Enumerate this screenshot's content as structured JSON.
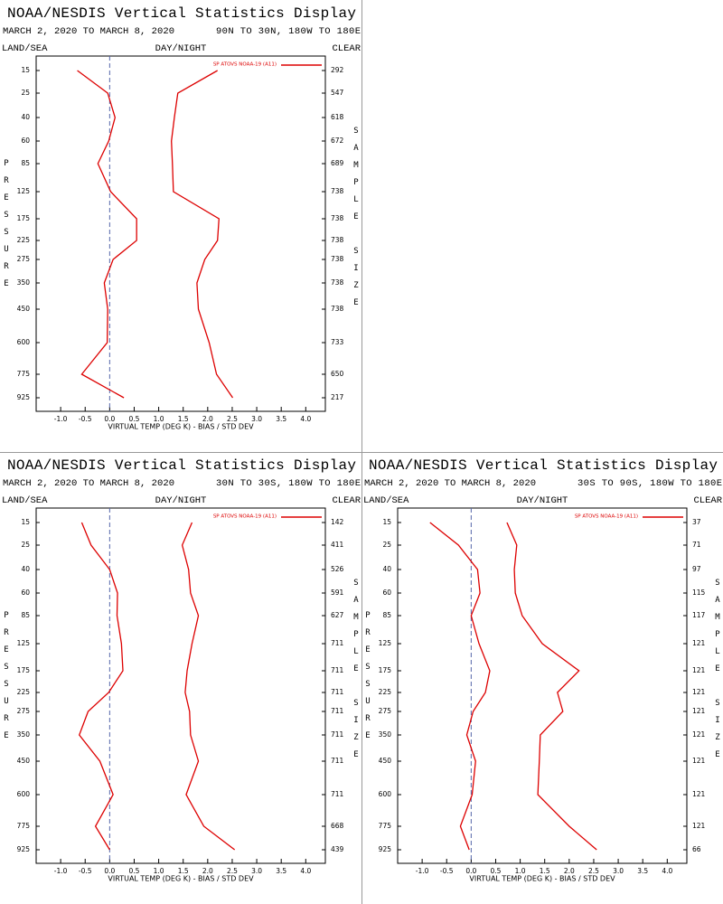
{
  "chart_data": [
    {
      "type": "line",
      "title": "NOAA/NESDIS Vertical Statistics Display",
      "subtitle": "MARCH 2, 2020 TO MARCH 8, 2020",
      "region": "90N TO 30N, 180W TO 180E",
      "annotations": [
        "LAND/SEA",
        "DAY/NIGHT",
        "CLEAR"
      ],
      "ylabel": "PRESSURE",
      "y2label": "SAMPLE SIZE",
      "xlabel": "VIRTUAL TEMP (DEG K) - BIAS / STD DEV",
      "categories": [
        15,
        25,
        40,
        60,
        85,
        125,
        175,
        225,
        275,
        350,
        450,
        600,
        775,
        925
      ],
      "sample_size": [
        292,
        547,
        618,
        672,
        689,
        738,
        738,
        738,
        738,
        738,
        738,
        733,
        650,
        217
      ],
      "series": [
        {
          "name": "SP ATOVS NOAA-19 (A11)",
          "color": "#dd0000",
          "values": [
            -0.66,
            -0.04,
            0.11,
            -0.02,
            -0.24,
            0.02,
            0.55,
            0.55,
            0.07,
            -0.11,
            -0.04,
            -0.05,
            -0.57,
            0.29
          ]
        },
        {
          "color": "#dd0000",
          "values": [
            2.2,
            1.39,
            1.32,
            1.26,
            1.28,
            1.3,
            2.23,
            2.2,
            1.94,
            1.78,
            1.81,
            2.03,
            2.18,
            2.51
          ]
        }
      ],
      "xlim": [
        -1.5,
        4.4
      ],
      "xticks": [
        {
          "value": -1,
          "label": "-1.0"
        },
        -0.5,
        {
          "value": 0,
          "label": "0.0"
        },
        0.5,
        {
          "value": 1,
          "label": "1.0"
        },
        1.5,
        {
          "value": 2,
          "label": "2.0"
        },
        2.5,
        {
          "value": 3,
          "label": "3.0"
        },
        3.5,
        {
          "value": 4,
          "label": "4.0"
        }
      ]
    },
    {
      "type": "line",
      "title": "NOAA/NESDIS Vertical Statistics Display",
      "subtitle": "MARCH 2, 2020 TO MARCH 8, 2020",
      "region": "30N TO 30S, 180W TO 180E",
      "annotations": [
        "LAND/SEA",
        "DAY/NIGHT",
        "CLEAR"
      ],
      "ylabel": "PRESSURE",
      "y2label": "SAMPLE SIZE",
      "xlabel": "VIRTUAL TEMP (DEG K) - BIAS / STD DEV",
      "categories": [
        15,
        25,
        40,
        60,
        85,
        125,
        175,
        225,
        275,
        350,
        450,
        600,
        775,
        925
      ],
      "sample_size": [
        142,
        411,
        526,
        591,
        627,
        711,
        711,
        711,
        711,
        711,
        711,
        711,
        668,
        439
      ],
      "series": [
        {
          "name": "SP ATOVS NOAA-19 (A11)",
          "color": "#dd0000",
          "values": [
            -0.57,
            -0.38,
            0,
            0.16,
            0.15,
            0.24,
            0.27,
            -0.02,
            -0.44,
            -0.62,
            -0.2,
            0.07,
            -0.29,
            0
          ]
        },
        {
          "color": "#dd0000",
          "values": [
            1.68,
            1.48,
            1.61,
            1.65,
            1.81,
            1.68,
            1.58,
            1.54,
            1.63,
            1.65,
            1.81,
            1.56,
            1.92,
            2.55
          ]
        }
      ],
      "xlim": [
        -1.5,
        4.4
      ],
      "xticks": [
        {
          "value": -1,
          "label": "-1.0"
        },
        -0.5,
        {
          "value": 0,
          "label": "0.0"
        },
        0.5,
        {
          "value": 1,
          "label": "1.0"
        },
        1.5,
        {
          "value": 2,
          "label": "2.0"
        },
        2.5,
        {
          "value": 3,
          "label": "3.0"
        },
        3.5,
        {
          "value": 4,
          "label": "4.0"
        }
      ]
    },
    {
      "type": "line",
      "title": "NOAA/NESDIS Vertical Statistics Display",
      "subtitle": "MARCH 2, 2020 TO MARCH 8, 2020",
      "region": "30S TO 90S, 180W TO 180E",
      "annotations": [
        "LAND/SEA",
        "DAY/NIGHT",
        "CLEAR"
      ],
      "ylabel": "PRESSURE",
      "y2label": "SAMPLE SIZE",
      "xlabel": "VIRTUAL TEMP (DEG K) - BIAS / STD DEV",
      "categories": [
        15,
        25,
        40,
        60,
        85,
        125,
        175,
        225,
        275,
        350,
        450,
        600,
        775,
        925
      ],
      "sample_size": [
        37,
        71,
        97,
        115,
        117,
        121,
        121,
        121,
        121,
        121,
        121,
        121,
        121,
        66
      ],
      "series": [
        {
          "name": "SP ATOVS NOAA-19 (A11)",
          "color": "#dd0000",
          "values": [
            -0.84,
            -0.26,
            0.13,
            0.18,
            0,
            0.16,
            0.38,
            0.29,
            0.04,
            -0.09,
            0.09,
            0.02,
            -0.22,
            -0.04
          ]
        },
        {
          "color": "#dd0000",
          "values": [
            0.73,
            0.93,
            0.88,
            0.9,
            1.04,
            1.45,
            2.2,
            1.76,
            1.87,
            1.41,
            1.39,
            1.36,
            2.0,
            2.56
          ]
        }
      ],
      "xlim": [
        -1.5,
        4.4
      ],
      "xticks": [
        {
          "value": -1,
          "label": "-1.0"
        },
        -0.5,
        {
          "value": 0,
          "label": "0.0"
        },
        0.5,
        {
          "value": 1,
          "label": "1.0"
        },
        1.5,
        {
          "value": 2,
          "label": "2.0"
        },
        2.5,
        {
          "value": 3,
          "label": "3.0"
        },
        3.5,
        {
          "value": 4,
          "label": "4.0"
        }
      ]
    }
  ]
}
